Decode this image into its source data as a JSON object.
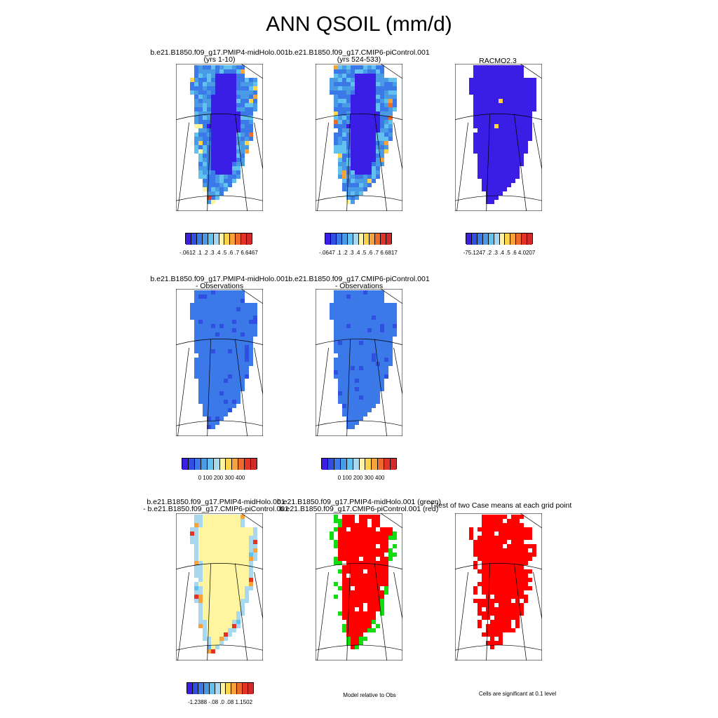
{
  "figure_title": "ANN QSOIL (mm/d)",
  "panels": [
    {
      "line1": "b.e21.B1850.f09_g17.PMIP4-midHolo.001",
      "line2": "(yrs 1-10)",
      "scheme": "case"
    },
    {
      "line1": "b.e21.B1850.f09_g17.CMIP6-piControl.001",
      "line2": "(yrs 524-533)",
      "scheme": "case"
    },
    {
      "line1": "RACMO2.3",
      "line2": "",
      "scheme": "obs"
    },
    {
      "line1": "b.e21.B1850.f09_g17.PMIP4-midHolo.001",
      "line2": "- Observations",
      "scheme": "bias"
    },
    {
      "line1": "b.e21.B1850.f09_g17.CMIP6-piControl.001",
      "line2": "- Observations",
      "scheme": "bias"
    },
    {
      "line1": "b.e21.B1850.f09_g17.PMIP4-midHolo.001",
      "line2": "- b.e21.B1850.f09_g17.CMIP6-piControl.001",
      "scheme": "diff"
    },
    {
      "line1": "b.e21.B1850.f09_g17.PMIP4-midHolo.001 (green)",
      "line2": "b.e21.B1850.f09_g17.CMIP6-piControl.001 (red)",
      "scheme": "rel"
    },
    {
      "line1": "T-test of two Case means at each grid point",
      "line2": "",
      "scheme": "sig"
    }
  ],
  "colorbars": [
    {
      "labels": "-.0612 .1 .2 .3 .4 .5 .6 .7 6.6467"
    },
    {
      "labels": "-.0647 .1 .2 .3 .4 .5 .6 .7 6.6817"
    },
    {
      "labels": "-75.1247   .2 .3 .4 .5 .6      4.0207"
    },
    {
      "labels": "0   100  200  300  400"
    },
    {
      "labels": "0   100  200  300  400"
    },
    {
      "labels": "-1.2388   -.08   .0   .08   1.1502"
    }
  ],
  "notes": {
    "relative": "Model relative to Obs",
    "significance": "Cells are significant at 0.1 level"
  },
  "palette": [
    "#3a1ee6",
    "#2f4fe0",
    "#3b78e8",
    "#4a9be6",
    "#62c2ef",
    "#a8d8f0",
    "#fff5a0",
    "#fdd34a",
    "#f7a23a",
    "#ee6a2a",
    "#e33327",
    "#d12a2a"
  ],
  "chart_data": {
    "type": "heatmap",
    "title": "ANN QSOIL (mm/d)",
    "region": "Greenland",
    "panels": [
      {
        "name": "b.e21.B1850.f09_g17.PMIP4-midHolo.001 (yrs 1-10)",
        "colorbar_min": -0.0612,
        "colorbar_max": 6.6467,
        "colorbar_ticks": [
          0.1,
          0.2,
          0.3,
          0.4,
          0.5,
          0.6,
          0.7
        ]
      },
      {
        "name": "b.e21.B1850.f09_g17.CMIP6-piControl.001 (yrs 524-533)",
        "colorbar_min": -0.0647,
        "colorbar_max": 6.6817,
        "colorbar_ticks": [
          0.1,
          0.2,
          0.3,
          0.4,
          0.5,
          0.6,
          0.7
        ]
      },
      {
        "name": "RACMO2.3",
        "colorbar_min": -75.1247,
        "colorbar_max": 4.0207,
        "colorbar_ticks": [
          0.2,
          0.3,
          0.4,
          0.5,
          0.6
        ]
      },
      {
        "name": "b.e21.B1850.f09_g17.PMIP4-midHolo.001 - Observations",
        "colorbar_ticks": [
          0,
          100,
          200,
          300,
          400
        ]
      },
      {
        "name": "b.e21.B1850.f09_g17.CMIP6-piControl.001 - Observations",
        "colorbar_ticks": [
          0,
          100,
          200,
          300,
          400
        ]
      },
      {
        "name": "b.e21.B1850.f09_g17.PMIP4-midHolo.001 - b.e21.B1850.f09_g17.CMIP6-piControl.001",
        "colorbar_min": -1.2388,
        "colorbar_max": 1.1502,
        "colorbar_ticks": [
          -0.08,
          0.0,
          0.08
        ]
      },
      {
        "name": "Model relative to Obs",
        "legend": [
          "green",
          "red"
        ]
      },
      {
        "name": "T-test of two Case means at each grid point",
        "note": "Cells are significant at 0.1 level"
      }
    ]
  }
}
